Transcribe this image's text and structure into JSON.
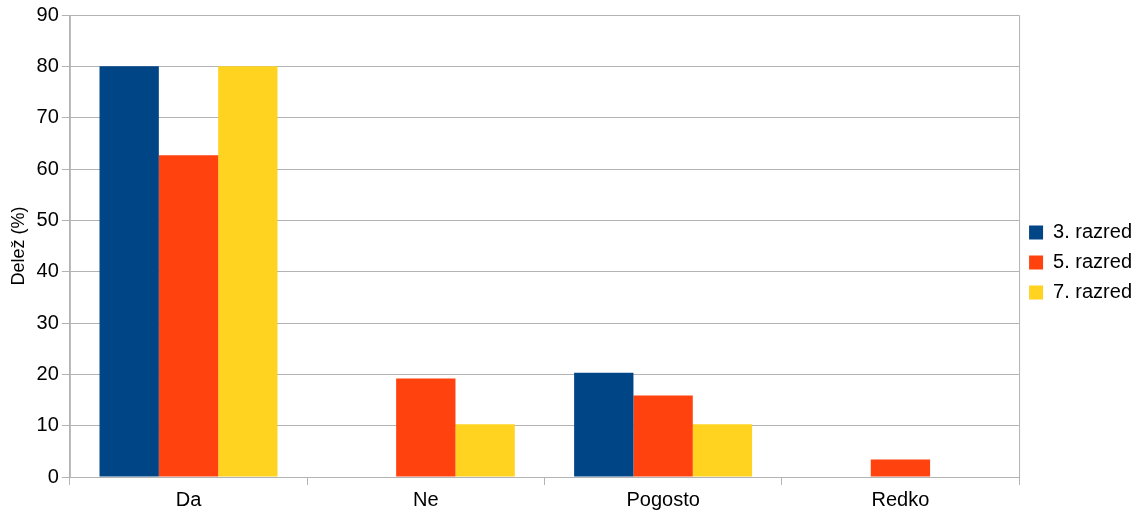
{
  "chart_data": {
    "type": "bar",
    "ylabel": "Delež (%)",
    "categories": [
      "Da",
      "Ne",
      "Pogosto",
      "Redko"
    ],
    "series": [
      {
        "name": "3. razred",
        "color": "#004586",
        "values": [
          80,
          0,
          20.3,
          0
        ]
      },
      {
        "name": "5. razred",
        "color": "#ff420e",
        "values": [
          62.7,
          19.2,
          15.9,
          3.4
        ]
      },
      {
        "name": "7. razred",
        "color": "#ffd320",
        "values": [
          80,
          10.3,
          10.3,
          0
        ]
      }
    ],
    "ylim": [
      0,
      90
    ],
    "yticks": [
      0,
      10,
      20,
      30,
      40,
      50,
      60,
      70,
      80,
      90
    ],
    "grid": "y",
    "legend": "right"
  }
}
